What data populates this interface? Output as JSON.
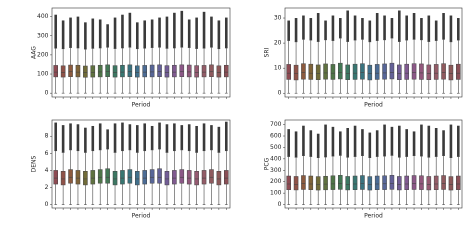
{
  "chart_data": [
    {
      "type": "box",
      "y_label": "AAG",
      "x_label": "Period",
      "categories": [
        null,
        null,
        null,
        null,
        null,
        null,
        null,
        null,
        null,
        null,
        null,
        null,
        null,
        null,
        null,
        null,
        null,
        null,
        null,
        null,
        null,
        null,
        null,
        null
      ],
      "ylim": [
        -20,
        445
      ],
      "yticks": [
        0,
        100,
        200,
        300,
        400
      ],
      "palette": [
        "#8c4a52",
        "#8f5248",
        "#8c5a3e",
        "#7f6338",
        "#706b38",
        "#5f7140",
        "#4f7548",
        "#437754",
        "#3c7762",
        "#387671",
        "#3a737f",
        "#41708c",
        "#4b6b94",
        "#576698",
        "#646198",
        "#725d96",
        "#805a90",
        "#8b5887",
        "#92587c",
        "#955a71",
        "#935c67",
        "#8f5a5e",
        "#8c5858",
        "#8a4f56"
      ],
      "low": [
        0,
        0,
        0,
        0,
        0,
        0,
        0,
        0,
        0,
        0,
        0,
        0,
        0,
        0,
        0,
        0,
        0,
        0,
        0,
        0,
        0,
        0,
        0,
        0
      ],
      "q1": [
        85,
        84,
        86,
        85,
        83,
        84,
        85,
        86,
        84,
        85,
        86,
        84,
        85,
        85,
        86,
        84,
        85,
        86,
        85,
        84,
        85,
        86,
        84,
        85
      ],
      "median": [
        110,
        108,
        112,
        110,
        107,
        109,
        111,
        112,
        109,
        110,
        112,
        108,
        110,
        111,
        112,
        109,
        110,
        112,
        111,
        109,
        110,
        112,
        108,
        110
      ],
      "q3": [
        145,
        143,
        147,
        146,
        142,
        144,
        146,
        148,
        144,
        146,
        148,
        143,
        145,
        147,
        148,
        144,
        146,
        148,
        147,
        144,
        145,
        148,
        143,
        146
      ],
      "high": [
        235,
        232,
        238,
        236,
        230,
        234,
        236,
        240,
        233,
        236,
        240,
        232,
        235,
        238,
        240,
        234,
        236,
        240,
        238,
        233,
        235,
        240,
        232,
        236
      ],
      "max": [
        410,
        380,
        395,
        400,
        370,
        390,
        385,
        360,
        395,
        410,
        420,
        370,
        380,
        385,
        395,
        400,
        420,
        430,
        385,
        395,
        425,
        400,
        380,
        395
      ]
    },
    {
      "type": "box",
      "y_label": "SRI",
      "x_label": "Period",
      "categories": [
        null,
        null,
        null,
        null,
        null,
        null,
        null,
        null,
        null,
        null,
        null,
        null,
        null,
        null,
        null,
        null,
        null,
        null,
        null,
        null,
        null,
        null,
        null,
        null
      ],
      "ylim": [
        -1.5,
        34
      ],
      "yticks": [
        0,
        10,
        20,
        30
      ],
      "palette": [
        "#8c4a52",
        "#8f5248",
        "#8c5a3e",
        "#7f6338",
        "#706b38",
        "#5f7140",
        "#4f7548",
        "#437754",
        "#3c7762",
        "#387671",
        "#3a737f",
        "#41708c",
        "#4b6b94",
        "#576698",
        "#646198",
        "#725d96",
        "#805a90",
        "#8b5887",
        "#92587c",
        "#955a71",
        "#935c67",
        "#8f5a5e",
        "#8c5858",
        "#8a4f56"
      ],
      "low": [
        0,
        0,
        0,
        0,
        0,
        0,
        0,
        0,
        0,
        0,
        0,
        0,
        0,
        0,
        0,
        0,
        0,
        0,
        0,
        0,
        0,
        0,
        0,
        0
      ],
      "q1": [
        5.5,
        5.3,
        5.6,
        5.5,
        5.4,
        5.6,
        5.5,
        5.7,
        5.4,
        5.5,
        5.6,
        5.3,
        5.5,
        5.6,
        5.7,
        5.4,
        5.5,
        5.6,
        5.5,
        5.4,
        5.5,
        5.6,
        5.3,
        5.5
      ],
      "median": [
        8,
        7.8,
        8.2,
        8,
        7.9,
        8.1,
        8,
        8.3,
        7.9,
        8,
        8.2,
        7.8,
        8,
        8.1,
        8.3,
        7.9,
        8,
        8.2,
        8.1,
        7.9,
        8,
        8.2,
        7.8,
        8
      ],
      "q3": [
        11.5,
        11.2,
        11.8,
        11.6,
        11.3,
        11.7,
        11.5,
        12,
        11.3,
        11.6,
        11.8,
        11.2,
        11.5,
        11.7,
        12,
        11.3,
        11.6,
        11.8,
        11.7,
        11.3,
        11.5,
        11.8,
        11.2,
        11.6
      ],
      "high": [
        21,
        20.5,
        21.5,
        21.2,
        20.6,
        21.3,
        21,
        22,
        20.6,
        21.2,
        21.5,
        20.5,
        21,
        21.3,
        22,
        20.6,
        21.2,
        21.5,
        21.3,
        20.6,
        21,
        21.5,
        20.5,
        21.2
      ],
      "max": [
        29,
        30,
        31,
        30,
        32,
        29,
        31,
        30,
        33,
        31,
        30,
        29,
        32,
        31,
        30,
        33,
        31,
        32,
        30,
        31,
        29,
        32,
        31,
        30
      ]
    },
    {
      "type": "box",
      "y_label": "DENS",
      "x_label": "Period",
      "categories": [
        null,
        null,
        null,
        null,
        null,
        null,
        null,
        null,
        null,
        null,
        null,
        null,
        null,
        null,
        null,
        null,
        null,
        null,
        null,
        null,
        null,
        null,
        null,
        null
      ],
      "ylim": [
        -0.4,
        9.9
      ],
      "yticks": [
        0,
        2,
        4,
        6,
        8
      ],
      "palette": [
        "#8c4a52",
        "#8f5248",
        "#8c5a3e",
        "#7f6338",
        "#706b38",
        "#5f7140",
        "#4f7548",
        "#437754",
        "#3c7762",
        "#387671",
        "#3a737f",
        "#41708c",
        "#4b6b94",
        "#576698",
        "#646198",
        "#725d96",
        "#805a90",
        "#8b5887",
        "#92587c",
        "#955a71",
        "#935c67",
        "#8f5a5e",
        "#8c5858",
        "#8a4f56"
      ],
      "low": [
        0,
        0,
        0,
        0,
        0,
        0,
        0,
        0,
        0,
        0,
        0,
        0,
        0,
        0,
        0,
        0,
        0,
        0,
        0,
        0,
        0,
        0,
        0,
        0
      ],
      "q1": [
        2.4,
        2.3,
        2.5,
        2.4,
        2.3,
        2.4,
        2.5,
        2.5,
        2.3,
        2.4,
        2.5,
        2.3,
        2.4,
        2.5,
        2.5,
        2.3,
        2.4,
        2.5,
        2.4,
        2.3,
        2.4,
        2.5,
        2.3,
        2.4
      ],
      "median": [
        3.1,
        3,
        3.2,
        3.1,
        3,
        3.1,
        3.2,
        3.2,
        3,
        3.1,
        3.2,
        3,
        3.1,
        3.2,
        3.2,
        3,
        3.1,
        3.2,
        3.1,
        3,
        3.1,
        3.2,
        3,
        3.1
      ],
      "q3": [
        4,
        3.9,
        4.1,
        4,
        3.9,
        4,
        4.1,
        4.2,
        3.9,
        4,
        4.1,
        3.9,
        4,
        4.1,
        4.2,
        3.9,
        4,
        4.1,
        4,
        3.9,
        4,
        4.1,
        3.9,
        4
      ],
      "high": [
        6.3,
        6.1,
        6.4,
        6.3,
        6.1,
        6.3,
        6.4,
        6.5,
        6.1,
        6.3,
        6.4,
        6.1,
        6.3,
        6.4,
        6.5,
        6.1,
        6.3,
        6.4,
        6.3,
        6.1,
        6.3,
        6.4,
        6.1,
        6.3
      ],
      "max": [
        9.6,
        9.3,
        9.5,
        9.4,
        9,
        9.2,
        9.5,
        8.8,
        9.5,
        9.6,
        9.4,
        9.3,
        9.5,
        9.2,
        9.6,
        9.4,
        9.5,
        9.3,
        9.4,
        9.2,
        9.5,
        9.3,
        9.1,
        9.7
      ]
    },
    {
      "type": "box",
      "y_label": "PCG",
      "x_label": "Period",
      "categories": [
        null,
        null,
        null,
        null,
        null,
        null,
        null,
        null,
        null,
        null,
        null,
        null,
        null,
        null,
        null,
        null,
        null,
        null,
        null,
        null,
        null,
        null,
        null,
        null
      ],
      "ylim": [
        -30,
        740
      ],
      "yticks": [
        0,
        100,
        200,
        300,
        400,
        500,
        600,
        700
      ],
      "palette": [
        "#8c4a52",
        "#8f5248",
        "#8c5a3e",
        "#7f6338",
        "#706b38",
        "#5f7140",
        "#4f7548",
        "#437754",
        "#3c7762",
        "#387671",
        "#3a737f",
        "#41708c",
        "#4b6b94",
        "#576698",
        "#646198",
        "#725d96",
        "#805a90",
        "#8b5887",
        "#92587c",
        "#955a71",
        "#935c67",
        "#8f5a5e",
        "#8c5858",
        "#8a4f56"
      ],
      "low": [
        0,
        0,
        0,
        0,
        0,
        0,
        0,
        0,
        0,
        0,
        0,
        0,
        0,
        0,
        0,
        0,
        0,
        0,
        0,
        0,
        0,
        0,
        0,
        0
      ],
      "q1": [
        130,
        128,
        132,
        130,
        127,
        129,
        131,
        133,
        128,
        130,
        132,
        127,
        130,
        131,
        133,
        128,
        130,
        132,
        131,
        128,
        130,
        132,
        127,
        130
      ],
      "median": [
        180,
        177,
        183,
        180,
        176,
        179,
        181,
        184,
        177,
        180,
        183,
        176,
        180,
        182,
        184,
        177,
        180,
        183,
        181,
        177,
        180,
        183,
        176,
        180
      ],
      "q3": [
        250,
        246,
        254,
        250,
        245,
        248,
        252,
        256,
        246,
        250,
        254,
        245,
        250,
        252,
        256,
        246,
        250,
        254,
        252,
        246,
        250,
        254,
        245,
        250
      ],
      "high": [
        420,
        414,
        428,
        420,
        410,
        416,
        424,
        430,
        414,
        420,
        428,
        410,
        420,
        424,
        430,
        414,
        420,
        428,
        424,
        414,
        420,
        428,
        410,
        420
      ],
      "max": [
        660,
        640,
        690,
        650,
        620,
        700,
        680,
        640,
        670,
        690,
        660,
        630,
        650,
        700,
        680,
        690,
        660,
        640,
        700,
        690,
        670,
        650,
        700,
        690
      ]
    }
  ]
}
